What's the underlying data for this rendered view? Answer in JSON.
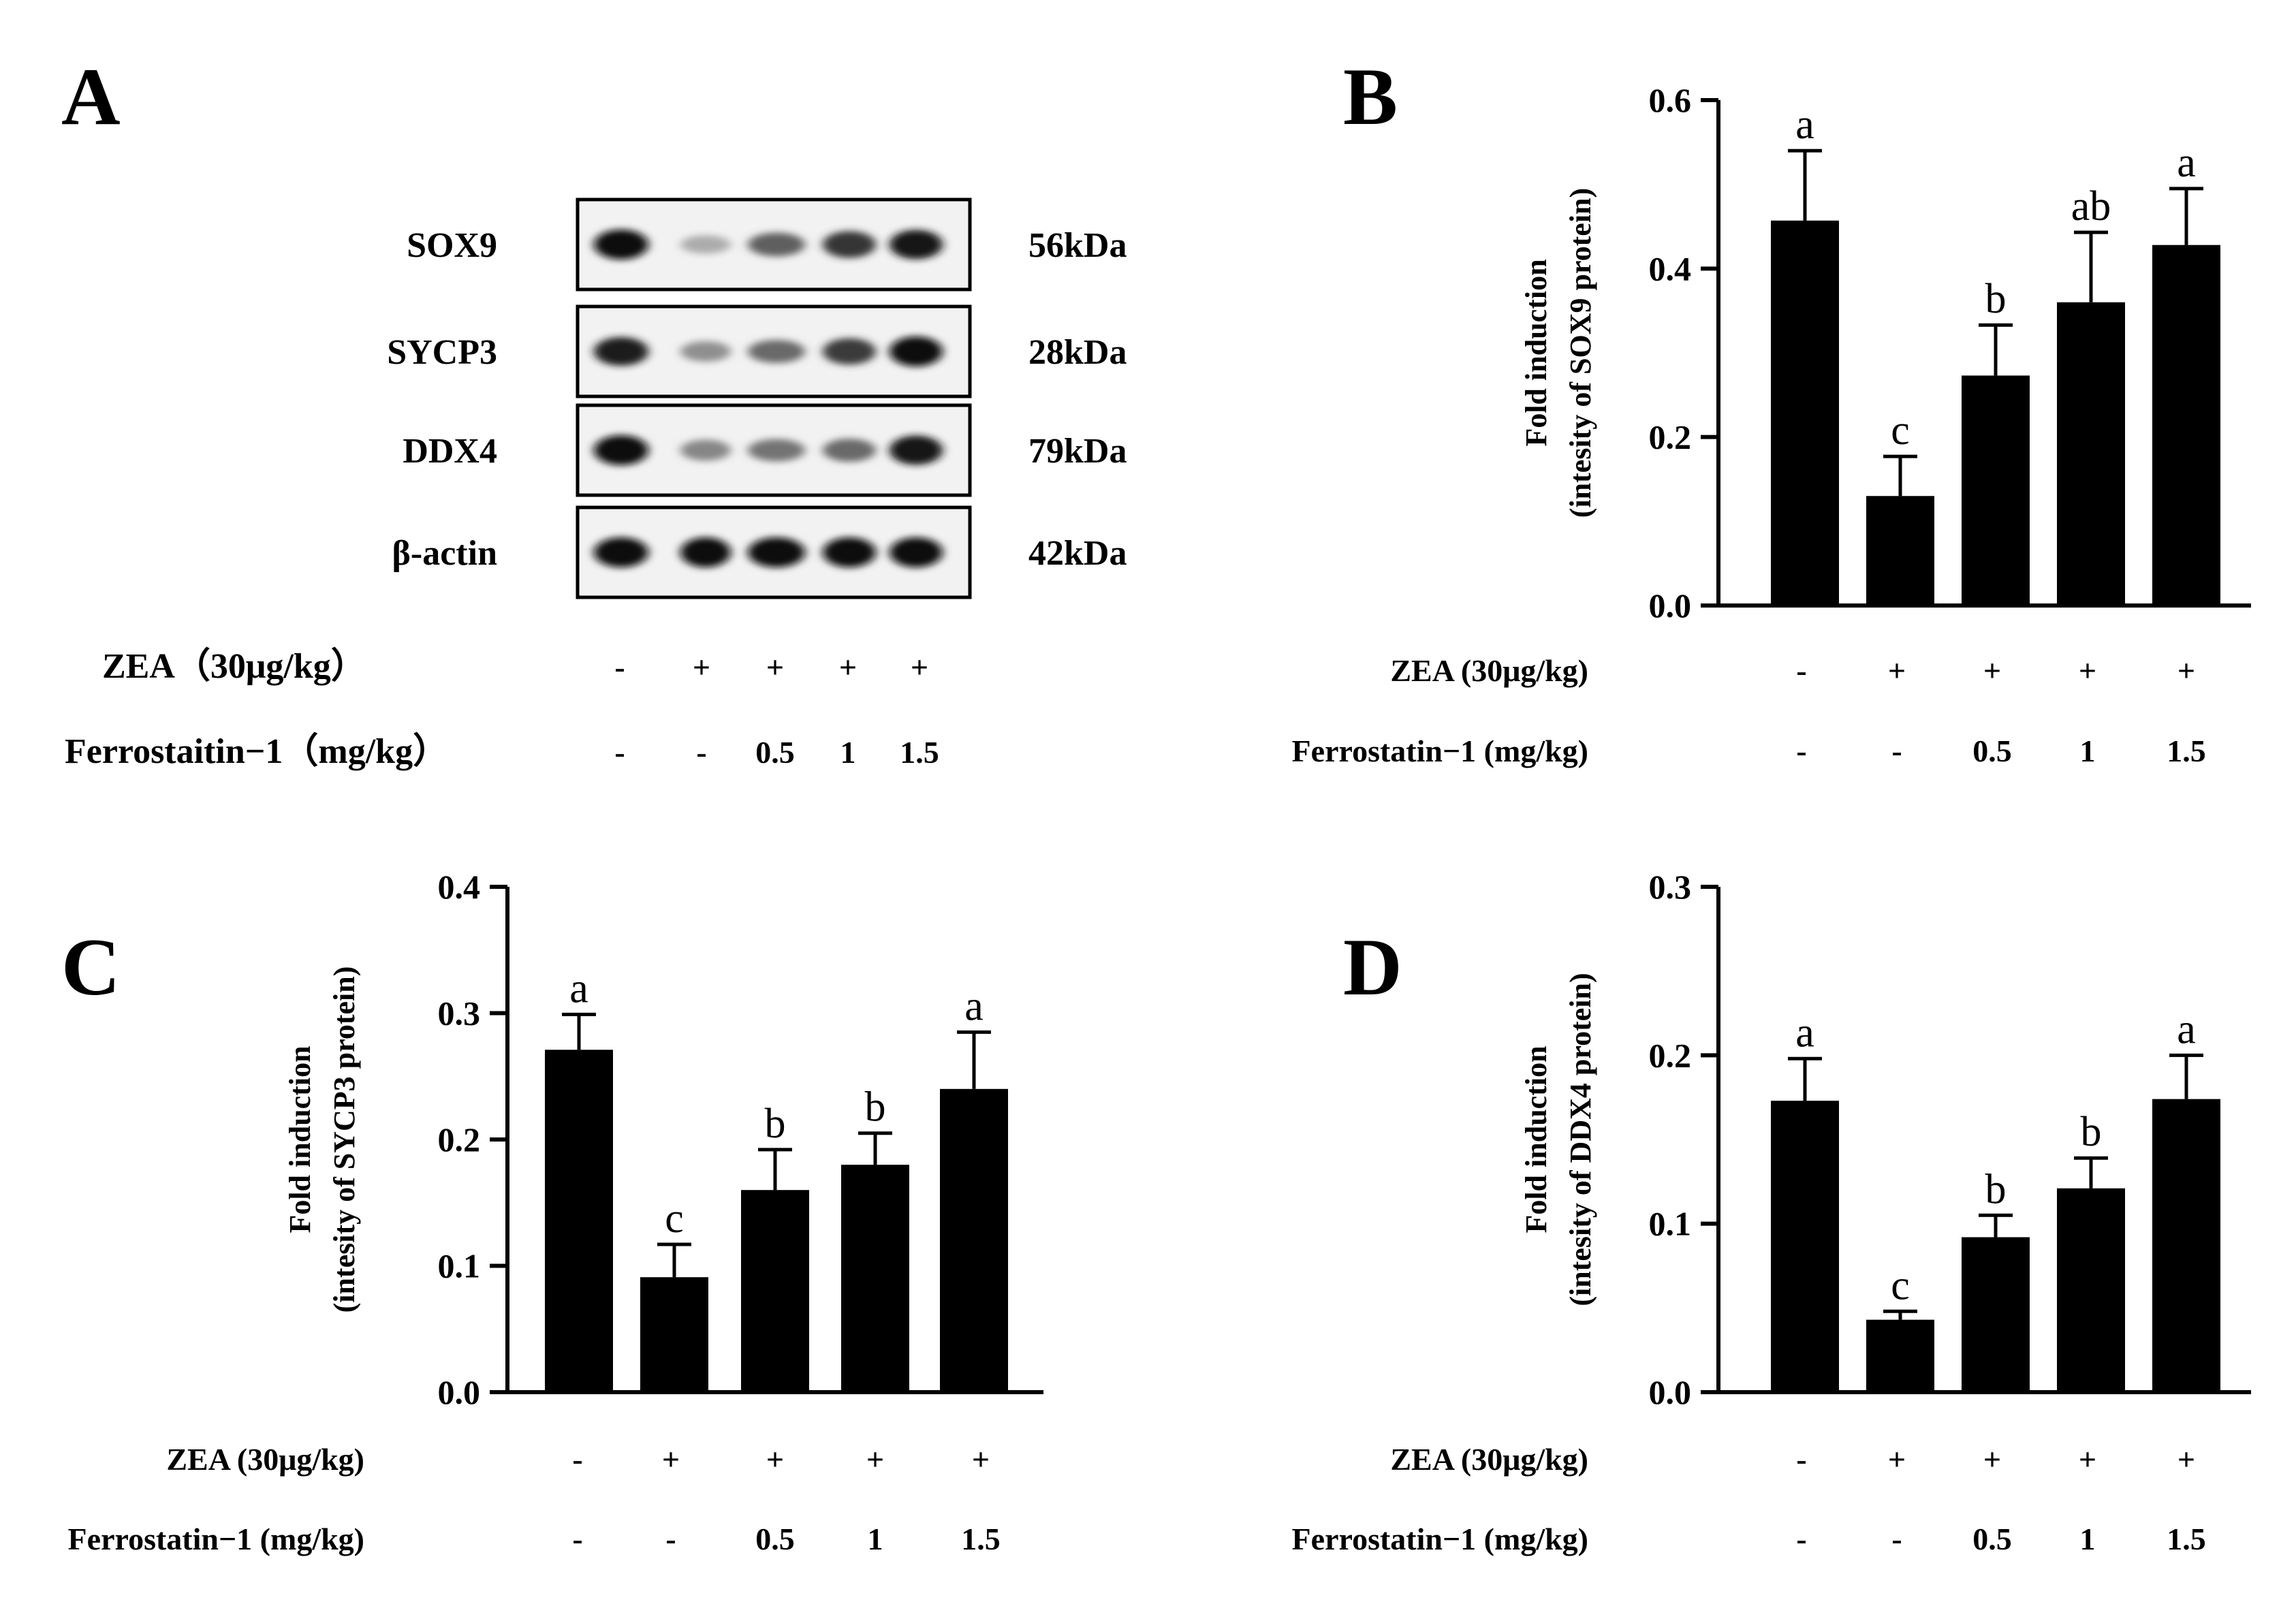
{
  "panel_a": {
    "letter": "A",
    "bands": [
      {
        "protein": "SOX9",
        "kda": "56kDa",
        "intensity": [
          1.0,
          0.15,
          0.55,
          0.78,
          0.95
        ]
      },
      {
        "protein": "SYCP3",
        "kda": "28kDa",
        "intensity": [
          0.9,
          0.3,
          0.5,
          0.75,
          1.0
        ]
      },
      {
        "protein": "DDX4",
        "kda": "79kDa",
        "intensity": [
          1.0,
          0.35,
          0.45,
          0.5,
          0.95
        ]
      },
      {
        "protein": "β-actin",
        "kda": "42kDa",
        "intensity": [
          1.0,
          1.0,
          1.0,
          1.0,
          1.0
        ]
      }
    ],
    "rows": [
      {
        "label": "ZEA（30μg/kg）",
        "values": [
          "-",
          "+",
          "+",
          "+",
          "+"
        ]
      },
      {
        "label": "Ferrostaitin−1（mg/kg）",
        "values": [
          "-",
          "-",
          "0.5",
          "1",
          "1.5"
        ]
      }
    ]
  },
  "chart_data": [
    {
      "panel": "B",
      "type": "bar",
      "ylabel_line1": "Fold induction",
      "ylabel_line2": "(intesity of SOX9 protein)",
      "ylim": [
        0,
        0.6
      ],
      "yticks": [
        "0.0",
        "0.2",
        "0.4",
        "0.6"
      ],
      "values": [
        0.457,
        0.13,
        0.273,
        0.36,
        0.428
      ],
      "errors": [
        0.083,
        0.047,
        0.06,
        0.083,
        0.067
      ],
      "letters": [
        "a",
        "c",
        "b",
        "ab",
        "a"
      ],
      "rows": [
        {
          "label": "ZEA (30μg/kg)",
          "values": [
            "-",
            "+",
            "+",
            "+",
            "+"
          ]
        },
        {
          "label": "Ferrostatin−1 (mg/kg)",
          "values": [
            "-",
            "-",
            "0.5",
            "1",
            "1.5"
          ]
        }
      ]
    },
    {
      "panel": "C",
      "type": "bar",
      "ylabel_line1": "Fold induction",
      "ylabel_line2": "(intesity of SYCP3 protein)",
      "ylim": [
        0,
        0.4
      ],
      "yticks": [
        "0.0",
        "0.1",
        "0.2",
        "0.3",
        "0.4"
      ],
      "values": [
        0.271,
        0.091,
        0.16,
        0.18,
        0.24
      ],
      "errors": [
        0.028,
        0.026,
        0.032,
        0.025,
        0.045
      ],
      "letters": [
        "a",
        "c",
        "b",
        "b",
        "a"
      ],
      "rows": [
        {
          "label": "ZEA (30μg/kg)",
          "values": [
            "-",
            "+",
            "+",
            "+",
            "+"
          ]
        },
        {
          "label": "Ferrostatin−1 (mg/kg)",
          "values": [
            "-",
            "-",
            "0.5",
            "1",
            "1.5"
          ]
        }
      ]
    },
    {
      "panel": "D",
      "type": "bar",
      "ylabel_line1": "Fold induction",
      "ylabel_line2": "(intesity of DDX4 protein)",
      "ylim": [
        0,
        0.3
      ],
      "yticks": [
        "0.0",
        "0.1",
        "0.2",
        "0.3"
      ],
      "values": [
        0.173,
        0.043,
        0.092,
        0.121,
        0.174
      ],
      "errors": [
        0.025,
        0.005,
        0.013,
        0.018,
        0.026
      ],
      "letters": [
        "a",
        "c",
        "b",
        "b",
        "a"
      ],
      "rows": [
        {
          "label": "ZEA (30μg/kg)",
          "values": [
            "-",
            "+",
            "+",
            "+",
            "+"
          ]
        },
        {
          "label": "Ferrostatin−1 (mg/kg)",
          "values": [
            "-",
            "-",
            "0.5",
            "1",
            "1.5"
          ]
        }
      ]
    }
  ]
}
